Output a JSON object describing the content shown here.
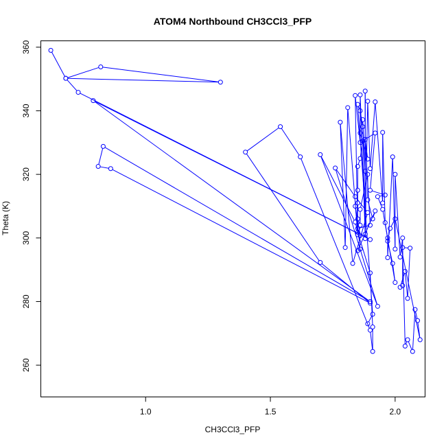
{
  "chart_data": {
    "type": "scatter",
    "title": "ATOM4 Northbound CH3CCl3_PFP",
    "xlabel": "CH3CCl3_PFP",
    "ylabel": "Theta (K)",
    "xlim": [
      0.58,
      2.12
    ],
    "ylim": [
      250,
      362
    ],
    "xticks": [
      1.0,
      1.5,
      2.0
    ],
    "yticks": [
      260,
      280,
      300,
      320,
      340,
      360
    ],
    "x_tick_labels": [
      "1.0",
      "1.5",
      "2.0"
    ],
    "y_tick_labels": [
      "260",
      "280",
      "300",
      "320",
      "340",
      "360"
    ],
    "connected": true,
    "grid": false,
    "color": "#0000ff",
    "points": [
      [
        0.62,
        359.0
      ],
      [
        0.68,
        350.2
      ],
      [
        0.82,
        353.8
      ],
      [
        1.3,
        349.0
      ],
      [
        0.68,
        350.2
      ],
      [
        0.73,
        345.8
      ],
      [
        1.9,
        299.5
      ],
      [
        0.79,
        343.2
      ],
      [
        1.9,
        280.0
      ],
      [
        0.83,
        328.8
      ],
      [
        0.81,
        322.5
      ],
      [
        0.86,
        321.8
      ],
      [
        1.9,
        279.5
      ],
      [
        1.7,
        292.3
      ],
      [
        1.4,
        327.0
      ],
      [
        1.54,
        335.0
      ],
      [
        1.62,
        325.5
      ],
      [
        1.9,
        271.0
      ],
      [
        1.91,
        264.3
      ],
      [
        1.91,
        272.0
      ],
      [
        1.9,
        289.0
      ],
      [
        1.85,
        301.8
      ],
      [
        1.84,
        305.0
      ],
      [
        1.7,
        326.2
      ],
      [
        1.93,
        278.5
      ],
      [
        1.76,
        322.0
      ],
      [
        1.84,
        313.0
      ],
      [
        1.89,
        308.0
      ],
      [
        1.83,
        292.0
      ],
      [
        1.78,
        336.4
      ],
      [
        1.8,
        297.0
      ],
      [
        1.81,
        341.0
      ],
      [
        1.85,
        301.0
      ],
      [
        1.84,
        344.8
      ],
      [
        1.86,
        330.0
      ],
      [
        1.86,
        345.0
      ],
      [
        1.88,
        301.2
      ],
      [
        1.87,
        337.2
      ],
      [
        1.88,
        321.0
      ],
      [
        1.88,
        346.2
      ],
      [
        1.88,
        299.8
      ],
      [
        1.89,
        343.0
      ],
      [
        1.9,
        321.8
      ],
      [
        1.92,
        342.8
      ],
      [
        1.95,
        311.0
      ],
      [
        1.95,
        333.2
      ],
      [
        1.96,
        304.8
      ],
      [
        1.97,
        300.0
      ],
      [
        1.97,
        293.8
      ],
      [
        1.99,
        325.5
      ],
      [
        2.0,
        296.5
      ],
      [
        2.0,
        320.0
      ],
      [
        2.02,
        294.0
      ],
      [
        2.03,
        300.0
      ],
      [
        2.03,
        285.0
      ],
      [
        2.02,
        284.5
      ],
      [
        2.04,
        289.5
      ],
      [
        2.05,
        281.0
      ],
      [
        2.06,
        296.8
      ],
      [
        2.03,
        297.0
      ],
      [
        2.04,
        266.0
      ],
      [
        2.05,
        268.0
      ],
      [
        2.07,
        264.3
      ],
      [
        2.08,
        277.5
      ],
      [
        2.09,
        274.0
      ],
      [
        2.1,
        268.0
      ],
      [
        2.0,
        306.0
      ],
      [
        1.98,
        303.0
      ],
      [
        1.97,
        299.0
      ],
      [
        1.99,
        292.0
      ],
      [
        2.0,
        286.0
      ],
      [
        1.95,
        309.0
      ],
      [
        1.93,
        313.0
      ],
      [
        1.96,
        313.5
      ],
      [
        1.9,
        315.0
      ],
      [
        1.92,
        333.0
      ],
      [
        1.87,
        330.5
      ],
      [
        1.86,
        325.0
      ],
      [
        1.85,
        322.5
      ],
      [
        1.85,
        315.0
      ],
      [
        1.85,
        311.0
      ],
      [
        1.85,
        306.0
      ],
      [
        1.86,
        304.0
      ],
      [
        1.86,
        309.0
      ],
      [
        1.89,
        320.0
      ],
      [
        1.89,
        312.0
      ],
      [
        1.91,
        306.0
      ],
      [
        1.92,
        308.5
      ],
      [
        1.85,
        296.0
      ],
      [
        1.86,
        296.5
      ],
      [
        1.84,
        310.0
      ],
      [
        1.86,
        300.8
      ],
      [
        1.85,
        303.0
      ],
      [
        1.9,
        304.0
      ],
      [
        1.88,
        331.0
      ],
      [
        1.89,
        324.8
      ],
      [
        1.86,
        333.0
      ],
      [
        1.87,
        335.0
      ],
      [
        1.86,
        340.0
      ],
      [
        1.85,
        342.0
      ],
      [
        1.91,
        276.0
      ],
      [
        1.89,
        273.0
      ]
    ]
  }
}
